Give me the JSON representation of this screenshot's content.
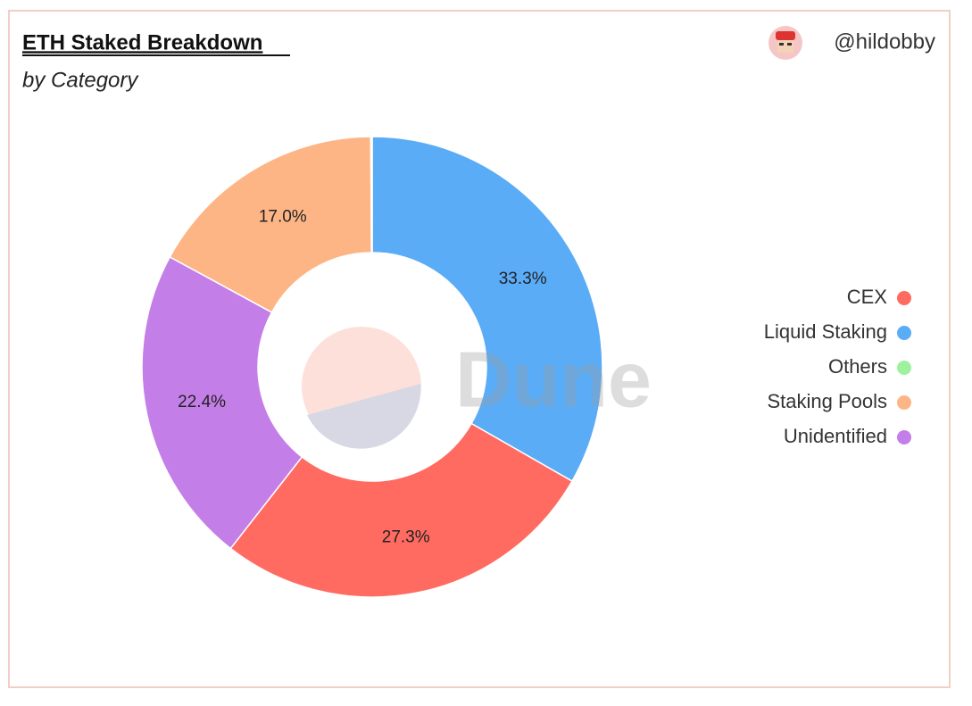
{
  "chart_data": {
    "type": "donut",
    "title": "ETH Staked Breakdown",
    "subtitle": "by Category",
    "author": "@hildobby",
    "watermark": "Dune",
    "categories": [
      "CEX",
      "Liquid Staking",
      "Others",
      "Staking Pools",
      "Unidentified"
    ],
    "values": [
      27.3,
      33.3,
      0.1,
      17.0,
      22.4
    ],
    "value_labels": [
      "27.3%",
      "33.3%",
      null,
      "17.0%",
      "22.4%"
    ],
    "colors": [
      "#ff6b61",
      "#5aacf7",
      "#9ef29e",
      "#fdb585",
      "#c47ee8"
    ],
    "slice_order": "value-descending",
    "legend": "right"
  }
}
